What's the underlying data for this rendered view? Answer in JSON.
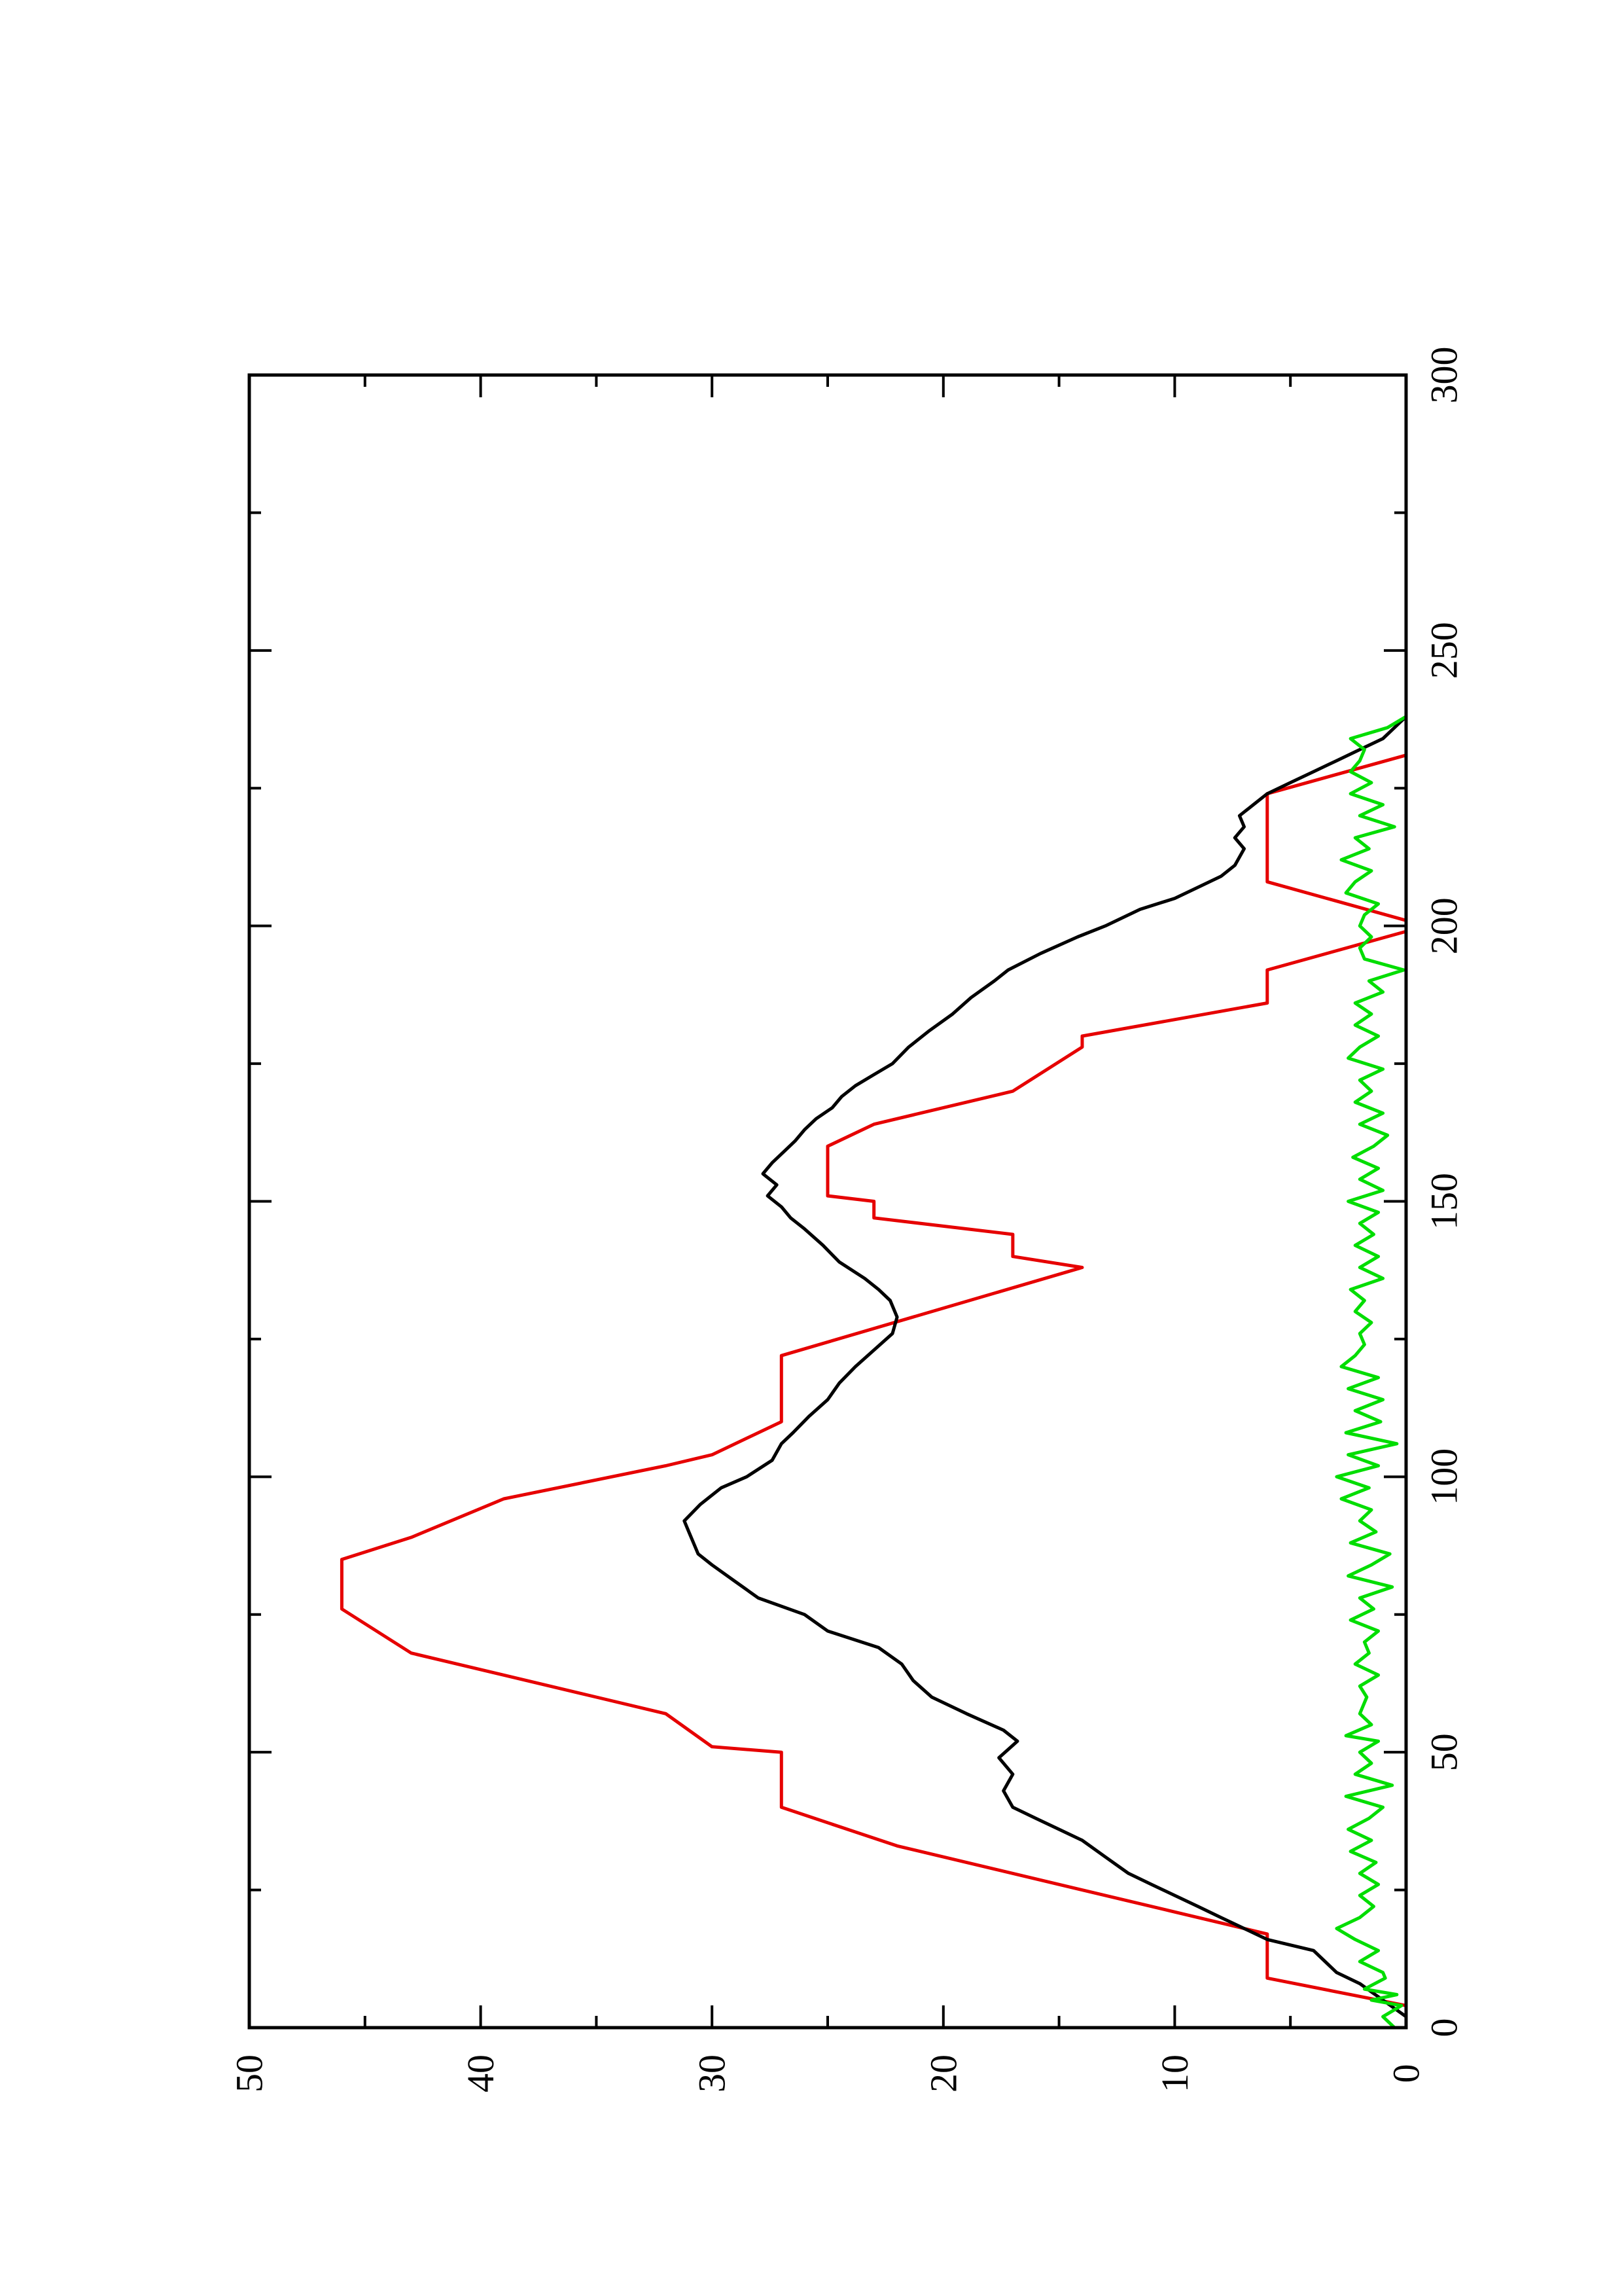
{
  "chart_data": {
    "type": "line",
    "orientation": "rotated-90-ccw",
    "title": "",
    "xlabel": "",
    "ylabel": "",
    "xlim": [
      0,
      300
    ],
    "ylim": [
      0,
      50
    ],
    "x_ticks": [
      {
        "value": 0,
        "label": "0"
      },
      {
        "value": 50,
        "label": "50"
      },
      {
        "value": 100,
        "label": "100"
      },
      {
        "value": 150,
        "label": "150"
      },
      {
        "value": 200,
        "label": "200"
      },
      {
        "value": 250,
        "label": "250"
      },
      {
        "value": 300,
        "label": "300"
      }
    ],
    "x_minor_ticks": [
      25,
      75,
      125,
      175,
      225,
      275
    ],
    "y_ticks": [
      {
        "value": 0,
        "label": "0"
      },
      {
        "value": 10,
        "label": "10"
      },
      {
        "value": 20,
        "label": "20"
      },
      {
        "value": 30,
        "label": "30"
      },
      {
        "value": 40,
        "label": "40"
      },
      {
        "value": 50,
        "label": "50"
      }
    ],
    "y_minor_ticks": [
      5,
      15,
      25,
      35,
      45
    ],
    "grid": false,
    "series": [
      {
        "color": "#e60000",
        "points": [
          [
            0,
            0
          ],
          [
            4,
            0
          ],
          [
            9,
            6
          ],
          [
            17,
            6
          ],
          [
            33,
            22
          ],
          [
            40,
            27
          ],
          [
            50,
            27
          ],
          [
            51,
            30
          ],
          [
            57,
            32
          ],
          [
            60,
            35
          ],
          [
            68,
            43
          ],
          [
            76,
            46
          ],
          [
            85,
            46
          ],
          [
            89,
            43
          ],
          [
            96,
            39
          ],
          [
            102,
            32
          ],
          [
            104,
            30
          ],
          [
            110,
            27
          ],
          [
            122,
            27
          ],
          [
            138,
            14
          ],
          [
            140,
            17
          ],
          [
            144,
            17
          ],
          [
            147,
            23
          ],
          [
            150,
            23
          ],
          [
            151,
            25
          ],
          [
            160,
            25
          ],
          [
            164,
            23
          ],
          [
            170,
            17
          ],
          [
            178,
            14
          ],
          [
            180,
            14
          ],
          [
            186,
            6
          ],
          [
            192,
            6
          ],
          [
            199,
            0
          ],
          [
            201,
            0
          ],
          [
            208,
            6
          ],
          [
            224,
            6
          ],
          [
            231,
            0
          ]
        ]
      },
      {
        "color": "#000000",
        "points": [
          [
            0,
            0
          ],
          [
            2,
            0
          ],
          [
            5,
            1
          ],
          [
            8,
            2
          ],
          [
            10,
            3
          ],
          [
            14,
            4
          ],
          [
            16,
            6
          ],
          [
            18,
            7
          ],
          [
            20,
            8
          ],
          [
            22,
            9
          ],
          [
            24,
            10
          ],
          [
            26,
            11
          ],
          [
            28,
            12
          ],
          [
            31,
            13
          ],
          [
            34,
            14
          ],
          [
            36,
            15
          ],
          [
            38,
            16
          ],
          [
            40,
            17
          ],
          [
            43,
            17.4
          ],
          [
            46,
            17
          ],
          [
            49,
            17.6
          ],
          [
            52,
            16.8
          ],
          [
            54,
            17.4
          ],
          [
            57,
            19
          ],
          [
            60,
            20.5
          ],
          [
            63,
            21.3
          ],
          [
            66,
            21.8
          ],
          [
            69,
            22.8
          ],
          [
            72,
            25
          ],
          [
            75,
            26
          ],
          [
            78,
            28
          ],
          [
            81,
            29
          ],
          [
            84,
            30
          ],
          [
            86,
            30.6
          ],
          [
            88,
            30.8
          ],
          [
            90,
            31
          ],
          [
            92,
            31.2
          ],
          [
            95,
            30.5
          ],
          [
            98,
            29.6
          ],
          [
            100,
            28.5
          ],
          [
            103,
            27.4
          ],
          [
            106,
            27
          ],
          [
            108,
            26.5
          ],
          [
            111,
            25.8
          ],
          [
            114,
            25
          ],
          [
            117,
            24.5
          ],
          [
            120,
            23.8
          ],
          [
            123,
            23
          ],
          [
            126,
            22.2
          ],
          [
            129,
            22
          ],
          [
            132,
            22.3
          ],
          [
            134,
            22.8
          ],
          [
            136,
            23.4
          ],
          [
            139,
            24.5
          ],
          [
            142,
            25.2
          ],
          [
            145,
            26
          ],
          [
            147,
            26.6
          ],
          [
            149,
            27
          ],
          [
            151,
            27.6
          ],
          [
            153,
            27.2
          ],
          [
            155,
            27.8
          ],
          [
            157,
            27.4
          ],
          [
            159,
            26.9
          ],
          [
            161,
            26.4
          ],
          [
            163,
            26
          ],
          [
            165,
            25.5
          ],
          [
            167,
            24.8
          ],
          [
            169,
            24.4
          ],
          [
            171,
            23.8
          ],
          [
            173,
            23
          ],
          [
            175,
            22.2
          ],
          [
            178,
            21.5
          ],
          [
            181,
            20.6
          ],
          [
            184,
            19.6
          ],
          [
            187,
            18.8
          ],
          [
            190,
            17.8
          ],
          [
            192,
            17.2
          ],
          [
            195,
            15.8
          ],
          [
            198,
            14.2
          ],
          [
            200,
            13
          ],
          [
            203,
            11.5
          ],
          [
            205,
            10
          ],
          [
            207,
            9
          ],
          [
            209,
            8
          ],
          [
            211,
            7.4
          ],
          [
            214,
            7
          ],
          [
            216,
            7.4
          ],
          [
            218,
            7
          ],
          [
            220,
            7.2
          ],
          [
            222,
            6.6
          ],
          [
            224,
            6
          ],
          [
            226,
            5
          ],
          [
            228,
            4
          ],
          [
            230,
            3
          ],
          [
            232,
            2
          ],
          [
            234,
            1
          ],
          [
            236,
            0.5
          ],
          [
            238,
            0
          ]
        ]
      },
      {
        "color": "#00dd00",
        "points": [
          [
            0,
            0.5
          ],
          [
            2,
            1
          ],
          [
            4,
            0.2
          ],
          [
            5,
            1.5
          ],
          [
            6,
            0.4
          ],
          [
            7,
            1.8
          ],
          [
            9,
            0.9
          ],
          [
            10,
            1
          ],
          [
            12,
            2
          ],
          [
            14,
            1.2
          ],
          [
            16,
            2.2
          ],
          [
            18,
            3
          ],
          [
            20,
            2
          ],
          [
            22,
            1.4
          ],
          [
            24,
            2
          ],
          [
            26,
            1.2
          ],
          [
            28,
            2
          ],
          [
            30,
            1.3
          ],
          [
            32,
            2.4
          ],
          [
            34,
            1.5
          ],
          [
            36,
            2.5
          ],
          [
            38,
            1.6
          ],
          [
            40,
            1
          ],
          [
            42,
            2.6
          ],
          [
            44,
            0.6
          ],
          [
            46,
            2.2
          ],
          [
            48,
            1.5
          ],
          [
            50,
            2
          ],
          [
            52,
            1.2
          ],
          [
            53,
            2.6
          ],
          [
            55,
            1.5
          ],
          [
            57,
            2
          ],
          [
            60,
            1.7
          ],
          [
            62,
            2
          ],
          [
            64,
            1.2
          ],
          [
            66,
            2.2
          ],
          [
            68,
            1.6
          ],
          [
            70,
            1.8
          ],
          [
            72,
            1.2
          ],
          [
            74,
            2.4
          ],
          [
            76,
            1.4
          ],
          [
            78,
            2
          ],
          [
            80,
            0.6
          ],
          [
            82,
            2.5
          ],
          [
            84,
            1.5
          ],
          [
            86,
            0.7
          ],
          [
            88,
            2.4
          ],
          [
            90,
            1.3
          ],
          [
            92,
            2
          ],
          [
            94,
            1.5
          ],
          [
            96,
            2.8
          ],
          [
            98,
            1.6
          ],
          [
            100,
            3
          ],
          [
            102,
            1.2
          ],
          [
            104,
            2.5
          ],
          [
            106,
            0.4
          ],
          [
            108,
            2.6
          ],
          [
            110,
            1.1
          ],
          [
            112,
            2.2
          ],
          [
            114,
            1
          ],
          [
            116,
            2.5
          ],
          [
            118,
            1.2
          ],
          [
            120,
            2.8
          ],
          [
            122,
            2.2
          ],
          [
            124,
            1.8
          ],
          [
            126,
            2
          ],
          [
            128,
            1.5
          ],
          [
            130,
            2.2
          ],
          [
            132,
            1.8
          ],
          [
            134,
            2.4
          ],
          [
            136,
            1
          ],
          [
            138,
            2
          ],
          [
            140,
            1.2
          ],
          [
            142,
            2.2
          ],
          [
            144,
            1.4
          ],
          [
            146,
            2
          ],
          [
            148,
            1.2
          ],
          [
            150,
            2.5
          ],
          [
            152,
            1
          ],
          [
            154,
            2
          ],
          [
            156,
            1.2
          ],
          [
            158,
            2.3
          ],
          [
            160,
            1.4
          ],
          [
            162,
            0.8
          ],
          [
            164,
            2
          ],
          [
            166,
            1
          ],
          [
            168,
            2.2
          ],
          [
            170,
            1.5
          ],
          [
            172,
            2
          ],
          [
            174,
            1
          ],
          [
            176,
            2.5
          ],
          [
            178,
            2
          ],
          [
            180,
            1.2
          ],
          [
            182,
            2.2
          ],
          [
            184,
            1.5
          ],
          [
            186,
            2.2
          ],
          [
            188,
            1
          ],
          [
            190,
            1.6
          ],
          [
            192,
            0.1
          ],
          [
            194,
            1.8
          ],
          [
            196,
            2
          ],
          [
            198,
            1.5
          ],
          [
            200,
            2
          ],
          [
            202,
            1.8
          ],
          [
            204,
            1.2
          ],
          [
            206,
            2.6
          ],
          [
            208,
            2.2
          ],
          [
            210,
            1.5
          ],
          [
            212,
            2.8
          ],
          [
            214,
            1.6
          ],
          [
            216,
            2.2
          ],
          [
            218,
            0.5
          ],
          [
            220,
            2
          ],
          [
            222,
            1
          ],
          [
            224,
            2.4
          ],
          [
            226,
            1.5
          ],
          [
            228,
            2.4
          ],
          [
            230,
            2
          ],
          [
            232,
            1.8
          ],
          [
            234,
            2.4
          ],
          [
            236,
            0.8
          ],
          [
            238,
            0
          ]
        ]
      }
    ]
  }
}
